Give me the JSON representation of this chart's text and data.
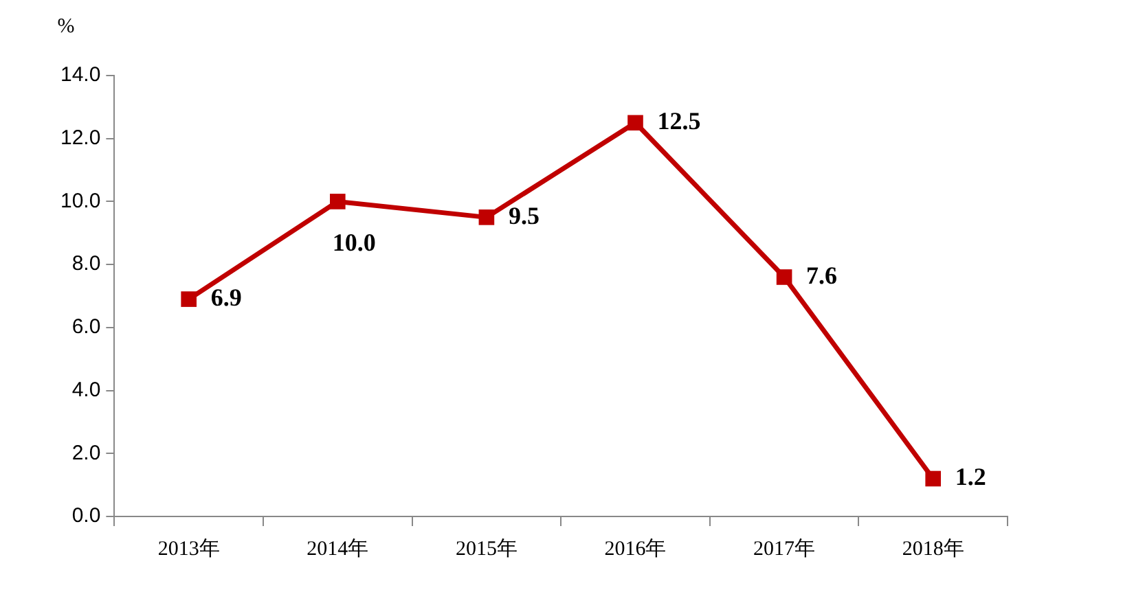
{
  "chart_data": {
    "type": "line",
    "ylabel": "%",
    "categories": [
      "2013年",
      "2014年",
      "2015年",
      "2016年",
      "2017年",
      "2018年"
    ],
    "series": [
      {
        "color": "#c00000",
        "values": [
          6.9,
          10.0,
          9.5,
          12.5,
          7.6,
          1.2
        ],
        "value_labels": [
          "6.9",
          "10.0",
          "9.5",
          "12.5",
          "7.6",
          "1.2"
        ]
      }
    ],
    "ylim": [
      0,
      14
    ],
    "yticks": [
      {
        "value": 0,
        "label": "0.0"
      },
      {
        "value": 2,
        "label": "2.0"
      },
      {
        "value": 4,
        "label": "4.0"
      },
      {
        "value": 6,
        "label": "6.0"
      },
      {
        "value": 8,
        "label": "8.0"
      },
      {
        "value": 10,
        "label": "10.0"
      },
      {
        "value": 12,
        "label": "12.0"
      },
      {
        "value": 14,
        "label": "14.0"
      }
    ],
    "grid": false,
    "legend": false,
    "marker": "square",
    "line_style": "solid"
  }
}
